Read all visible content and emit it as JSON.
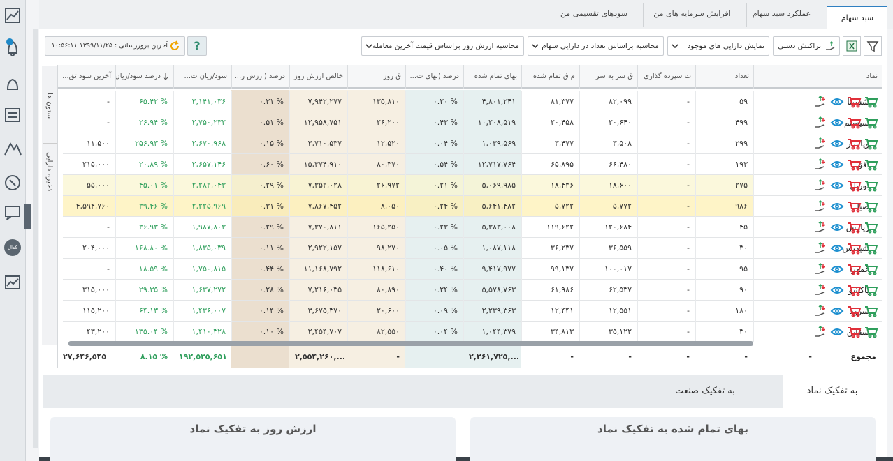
{
  "tabs": [
    "سبد سهام",
    "عملکرد سبد سهام",
    "افزایش سرمایه های من",
    "سودهای تقسیمی من"
  ],
  "toolbar": {
    "manual_transaction": "تراکنش دستی",
    "show_filter": "نمایش دارایی های موجود",
    "count_basis": "محاسبه براساس تعداد در دارایی سهام",
    "value_basis": "محاسبه ارزش روز براساس قیمت آخرین معامله",
    "help": "?",
    "last_update": "آخرین بروزرسانی : ۱۳۹۹/۱۱/۲۵ ۱۰:۵۶:۱۱"
  },
  "side_tabs": [
    "ستون ها",
    "ذخیره دارایی"
  ],
  "sidebar": {
    "codal": "کدال"
  },
  "table": {
    "columns": [
      "نماد",
      "تعداد",
      "ت سپرده گذاری",
      "ق سر به سر",
      "م ق تمام شده",
      "بهای تمام شده",
      "درصد (بهای ت...",
      "ق روز",
      "خالص ارزش روز",
      "درصد (ارزش ر...",
      "سود/زیان ت...",
      "درصد سود/زیان",
      "آخرین سود تق..."
    ],
    "rows": [
      [
        "شسینا",
        "۵۹",
        "-",
        "۸۲,۰۹۹",
        "۸۱,۳۷۷",
        "۴,۸۰۱,۲۴۱",
        "۰.۲۰ %",
        "۱۳۵,۸۱۰",
        "۷,۹۴۲,۲۷۷",
        "۰.۳۱ %",
        "۳,۱۴۱,۰۳۶",
        "۶۵.۴۲ %",
        "-"
      ],
      [
        "سیستم",
        "۴۹۹",
        "-",
        "۲۰,۶۴۰",
        "۲۰,۴۵۸",
        "۱۰,۲۰۸,۵۱۹",
        "۰.۴۳ %",
        "۲۶,۲۰۰",
        "۱۲,۹۵۸,۷۵۱",
        "۰.۵۱ %",
        "۲,۷۵۰,۲۳۲",
        "۲۶.۹۴ %",
        "-"
      ],
      [
        "وپاسار",
        "۲۹۹",
        "-",
        "۳,۵۰۸",
        "۳,۴۷۷",
        "۱,۰۳۹,۵۶۹",
        "۰.۰۴ %",
        "۱۲,۵۲۰",
        "۳,۷۱۰,۵۳۷",
        "۰.۱۵ %",
        "۲,۶۷۰,۹۶۸",
        "۲۵۶.۹۳ %",
        "۱۱,۵۰۰"
      ],
      [
        "افق",
        "۱۹۳",
        "-",
        "۶۶,۴۸۰",
        "۶۵,۸۹۵",
        "۱۲,۷۱۷,۷۶۴",
        "۰.۵۴ %",
        "۸۰,۳۷۰",
        "۱۵,۳۷۴,۹۱۰",
        "۰.۶۰ %",
        "۲,۶۵۷,۱۴۶",
        "۲۰.۸۹ %",
        "۲۱۵,۰۰۰"
      ],
      [
        "توریل",
        "۲۷۵",
        "-",
        "۱۸,۶۰۰",
        "۱۸,۴۳۶",
        "۵,۰۶۹,۹۸۵",
        "۰.۲۱ %",
        "۲۶,۹۷۲",
        "۷,۳۵۲,۰۲۸",
        "۰.۲۹ %",
        "۲,۲۸۲,۰۴۳",
        "۴۵.۰۱ %",
        "۵۵,۰۰۰"
      ],
      [
        "صبا",
        "۹۸۶",
        "-",
        "۵,۷۷۲",
        "۵,۷۲۲",
        "۵,۶۴۱,۴۸۲",
        "۰.۲۴ %",
        "۸,۰۵۰",
        "۷,۸۶۷,۴۵۲",
        "۰.۳۱ %",
        "۲,۲۲۵,۹۶۹",
        "۳۹.۴۶ %",
        "۴,۵۹۴,۷۶۰"
      ],
      [
        "زپارس",
        "۴۵",
        "-",
        "۱۲۰,۶۸۴",
        "۱۱۹,۶۲۲",
        "۵,۳۸۳,۰۰۸",
        "۰.۲۳ %",
        "۱۶۵,۲۵۰",
        "۷,۳۷۰,۸۱۱",
        "۰.۲۹ %",
        "۱,۹۸۷,۸۰۳",
        "۳۶.۹۳ %",
        "-"
      ],
      [
        "شپدیس",
        "۳۰",
        "-",
        "۳۶,۵۵۹",
        "۳۶,۲۳۷",
        "۱,۰۸۷,۱۱۸",
        "۰.۰۵ %",
        "۹۸,۲۷۰",
        "۲,۹۲۲,۱۵۷",
        "۰.۱۱ %",
        "۱,۸۳۵,۰۳۹",
        "۱۶۸.۸۰ %",
        "۲۰۴,۰۰۰"
      ],
      [
        "غمهرا",
        "۹۵",
        "-",
        "۱۰۰,۰۱۷",
        "۹۹,۱۳۷",
        "۹,۴۱۷,۹۷۷",
        "۰.۴۰ %",
        "۱۱۸,۶۱۰",
        "۱۱,۱۶۸,۷۹۲",
        "۰.۴۴ %",
        "۱,۷۵۰,۸۱۵",
        "۱۸.۵۹ %",
        "-"
      ],
      [
        "پاکشو",
        "۹۰",
        "-",
        "۶۲,۵۳۷",
        "۶۱,۹۸۶",
        "۵,۵۷۸,۷۶۳",
        "۰.۲۴ %",
        "۸۰,۸۹۰",
        "۷,۲۱۶,۰۳۵",
        "۰.۲۸ %",
        "۱,۶۳۷,۲۷۲",
        "۲۹.۳۵ %",
        "۳۱۵,۰۰۰"
      ],
      [
        "سرود",
        "۱۸۰",
        "-",
        "۱۲,۵۵۱",
        "۱۲,۴۴۱",
        "۲,۲۳۹,۳۶۳",
        "۰.۰۹ %",
        "۲۰,۶۰۰",
        "۳,۶۷۵,۳۷۰",
        "۰.۱۴ %",
        "۱,۴۳۶,۰۰۷",
        "۶۴.۱۳ %",
        "۱۱۵,۲۰۰"
      ],
      [
        "سقاین",
        "۳۰",
        "-",
        "۳۵,۱۲۲",
        "۳۴,۸۱۳",
        "۱,۰۴۴,۳۷۹",
        "۰.۰۴ %",
        "۸۲,۵۵۰",
        "۲,۴۵۴,۷۰۷",
        "۰.۱۰ %",
        "۱,۴۱۰,۳۲۸",
        "۱۳۵.۰۴ %",
        "۴۳,۲۰۰"
      ]
    ],
    "footer": {
      "label": "مجموع",
      "cells": [
        "-",
        "-",
        "-",
        "-",
        "-",
        "۲,۳۶۱,۷۲۵,...",
        null,
        "-",
        "۲,۵۵۴,۲۶۰,...",
        null,
        "۱۹۲,۵۳۵,۶۵۱",
        "۸.۱۵ %",
        "۲۷,۶۴۶,۵۴۵"
      ]
    }
  },
  "bottom": {
    "tabs": [
      "به تفکیک نماد",
      "به تفکیک صنعت"
    ],
    "cards": [
      "بهای تمام شده به تفکیک نماد",
      "ارزش روز به تفکیک نماد"
    ]
  }
}
